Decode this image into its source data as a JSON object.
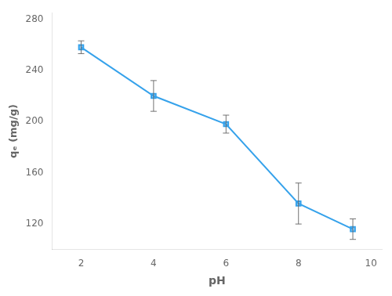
{
  "chart_data": {
    "type": "line",
    "xlabel": "pH",
    "ylabel": "qₑ (mg/g)",
    "x": [
      2,
      4,
      6,
      8,
      9.5
    ],
    "values": [
      258,
      220,
      198,
      136,
      116
    ],
    "yerr": [
      5,
      12,
      7,
      16,
      8
    ],
    "marker": "square",
    "xlim": [
      1.2,
      10.3
    ],
    "ylim": [
      100,
      285
    ],
    "xticks": [
      2,
      4,
      6,
      8,
      10
    ],
    "yticks": [
      120,
      {
        "value": 140,
        "label": ""
      },
      160,
      {
        "value": 180,
        "label": ""
      },
      200,
      {
        "value": 220,
        "label": ""
      },
      240,
      {
        "value": 260,
        "label": ""
      },
      280
    ],
    "grid": false
  }
}
